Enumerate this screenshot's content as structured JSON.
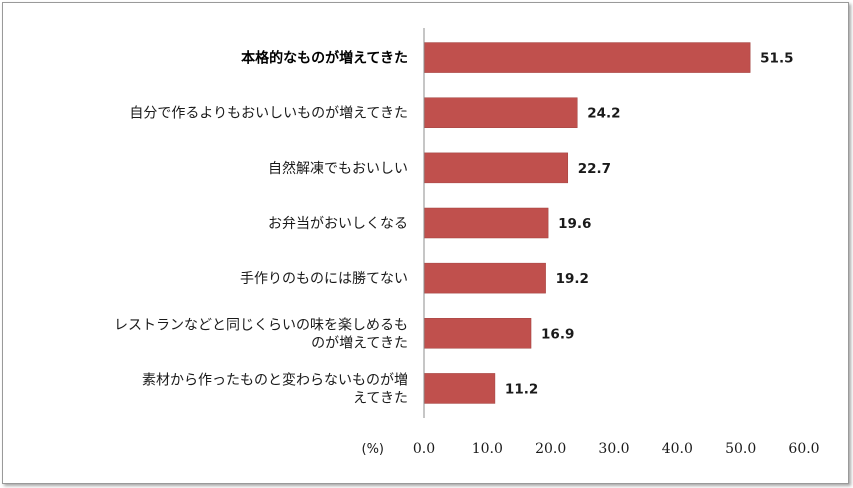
{
  "chart_data": {
    "type": "bar",
    "orientation": "horizontal",
    "categories": [
      [
        "本格的なものが増えてきた"
      ],
      [
        "自分で作るよりもおいしいものが増えてきた"
      ],
      [
        "自然解凍でもおいしい"
      ],
      [
        "お弁当がおいしくなる"
      ],
      [
        "手作りのものには勝てない"
      ],
      [
        "レストランなどと同じくらいの味を楽しめるも",
        "のが増えてきた"
      ],
      [
        "素材から作ったものと変わらないものが増",
        "えてきた"
      ]
    ],
    "values": [
      51.5,
      24.2,
      22.7,
      19.6,
      19.2,
      16.9,
      11.2
    ],
    "value_labels": [
      "51.5",
      "24.2",
      "22.7",
      "19.6",
      "19.2",
      "16.9",
      "11.2"
    ],
    "highlight_index": 0,
    "xlim": [
      0,
      60
    ],
    "ticks": [
      "0.0",
      "10.0",
      "20.0",
      "30.0",
      "40.0",
      "50.0",
      "60.0"
    ],
    "unit_label": "(%)",
    "grid": false,
    "bar_color": "#c0504d"
  }
}
